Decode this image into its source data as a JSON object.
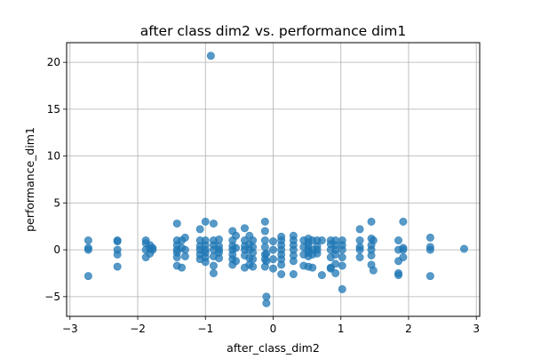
{
  "chart_data": {
    "type": "scatter",
    "title": "after class dim2 vs. performance dim1",
    "xlabel": "after_class_dim2",
    "ylabel": "performance_dim1",
    "xlim": [
      -3.05,
      3.05
    ],
    "ylim": [
      -7.1,
      22.1
    ],
    "xticks": [
      -3,
      -2,
      -1,
      0,
      1,
      2,
      3
    ],
    "xtick_labels": [
      "−3",
      "−2",
      "−1",
      "0",
      "1",
      "2",
      "3"
    ],
    "yticks": [
      -5,
      0,
      5,
      10,
      15,
      20
    ],
    "ytick_labels": [
      "−5",
      "0",
      "5",
      "10",
      "15",
      "20"
    ],
    "grid": true,
    "marker_color": "#1f77b4",
    "marker_alpha": 0.75,
    "x": [
      -0.92,
      -2.73,
      -2.73,
      -2.73,
      -2.73,
      -2.3,
      -2.3,
      -2.3,
      -2.3,
      -2.3,
      -1.88,
      -1.88,
      -1.88,
      -1.88,
      -1.82,
      -1.82,
      -1.82,
      -1.78,
      -1.78,
      -1.42,
      -1.42,
      -1.42,
      -1.42,
      -1.42,
      -1.42,
      -1.42,
      -1.35,
      -1.35,
      -1.35,
      -1.3,
      -1.3,
      -1.3,
      -1.08,
      -1.08,
      -1.08,
      -1.08,
      -1.08,
      -1.08,
      -1.0,
      -1.0,
      -1.0,
      -1.0,
      -1.0,
      -1.0,
      -1.0,
      -0.88,
      -0.88,
      -0.88,
      -0.88,
      -0.88,
      -0.88,
      -0.88,
      -0.8,
      -0.8,
      -0.8,
      -0.8,
      -0.8,
      -0.6,
      -0.6,
      -0.6,
      -0.6,
      -0.6,
      -0.6,
      -0.6,
      -0.55,
      -0.55,
      -0.55,
      -0.42,
      -0.42,
      -0.42,
      -0.42,
      -0.42,
      -0.42,
      -0.35,
      -0.35,
      -0.35,
      -0.35,
      -0.35,
      -0.3,
      -0.3,
      -0.3,
      -0.3,
      -0.3,
      -0.12,
      -0.12,
      -0.12,
      -0.12,
      -0.12,
      -0.12,
      -0.12,
      -0.1,
      -0.1,
      -0.1,
      -0.1,
      0.0,
      0.0,
      0.0,
      0.0,
      0.12,
      0.12,
      0.12,
      0.12,
      0.12,
      0.12,
      0.12,
      0.12,
      0.3,
      0.3,
      0.3,
      0.3,
      0.3,
      0.3,
      0.3,
      0.45,
      0.45,
      0.45,
      0.45,
      0.52,
      0.52,
      0.52,
      0.52,
      0.52,
      0.52,
      0.52,
      0.58,
      0.58,
      0.58,
      0.58,
      0.65,
      0.65,
      0.65,
      0.65,
      0.72,
      0.72,
      0.85,
      0.85,
      0.85,
      0.85,
      0.85,
      0.85,
      0.92,
      0.92,
      0.92,
      0.92,
      0.92,
      0.92,
      1.02,
      1.02,
      1.02,
      1.02,
      1.02,
      1.02,
      1.28,
      1.28,
      1.28,
      1.28,
      1.28,
      1.45,
      1.45,
      1.45,
      1.45,
      1.45,
      1.45,
      1.48,
      1.48,
      1.85,
      1.85,
      1.85,
      1.85,
      1.85,
      1.92,
      1.92,
      1.92,
      1.92,
      2.32,
      2.32,
      2.32,
      2.32,
      2.82
    ],
    "y": [
      20.7,
      1.0,
      0.2,
      0.0,
      -2.8,
      1.0,
      0.9,
      0.0,
      -0.5,
      -1.8,
      1.0,
      0.7,
      0.0,
      -0.8,
      0.5,
      0.1,
      -0.4,
      0.2,
      0.0,
      2.8,
      1.0,
      0.5,
      0.0,
      -0.3,
      -0.8,
      -1.7,
      1.0,
      0.2,
      -1.9,
      1.3,
      0.0,
      -0.7,
      2.2,
      1.0,
      0.4,
      0.0,
      -0.5,
      -1.0,
      3.0,
      1.0,
      0.5,
      0.0,
      -0.3,
      -0.8,
      -1.3,
      2.8,
      1.0,
      0.5,
      0.0,
      -0.7,
      -1.7,
      -2.5,
      1.1,
      0.4,
      0.0,
      -0.3,
      -0.9,
      2.0,
      1.0,
      0.4,
      0.0,
      -0.5,
      -1.0,
      -1.6,
      1.5,
      0.2,
      -1.2,
      2.3,
      1.0,
      0.4,
      0.0,
      -0.6,
      -1.9,
      1.5,
      0.6,
      0.0,
      -0.9,
      -1.6,
      1.0,
      0.3,
      -0.3,
      -1.0,
      -1.8,
      3.0,
      2.0,
      1.0,
      0.3,
      -0.5,
      -1.0,
      -1.8,
      -0.4,
      -1.2,
      -5.0,
      -5.7,
      0.9,
      0.0,
      -1.0,
      -2.0,
      1.4,
      1.0,
      0.5,
      0.0,
      -0.5,
      -1.0,
      -1.6,
      -2.6,
      1.5,
      1.0,
      0.5,
      0.0,
      -0.6,
      -1.2,
      -2.6,
      1.0,
      0.3,
      -0.5,
      -1.7,
      1.2,
      0.8,
      0.4,
      0.0,
      -0.3,
      -0.7,
      -1.8,
      1.0,
      0.0,
      -0.5,
      -1.9,
      1.0,
      0.4,
      0.0,
      -0.4,
      1.0,
      -2.7,
      1.0,
      0.6,
      0.0,
      -0.8,
      -1.9,
      -2.0,
      1.0,
      0.5,
      0.0,
      -0.5,
      -1.5,
      -2.5,
      1.0,
      0.5,
      0.0,
      -0.8,
      -1.7,
      -4.2,
      2.2,
      1.0,
      0.3,
      0.0,
      -0.8,
      3.0,
      1.2,
      0.5,
      0.0,
      -0.6,
      -1.6,
      1.0,
      -2.2,
      1.0,
      0.0,
      -1.2,
      -2.7,
      -2.5,
      3.0,
      0.2,
      0.0,
      -0.8,
      1.3,
      0.3,
      0.0,
      -2.8,
      0.1
    ]
  }
}
